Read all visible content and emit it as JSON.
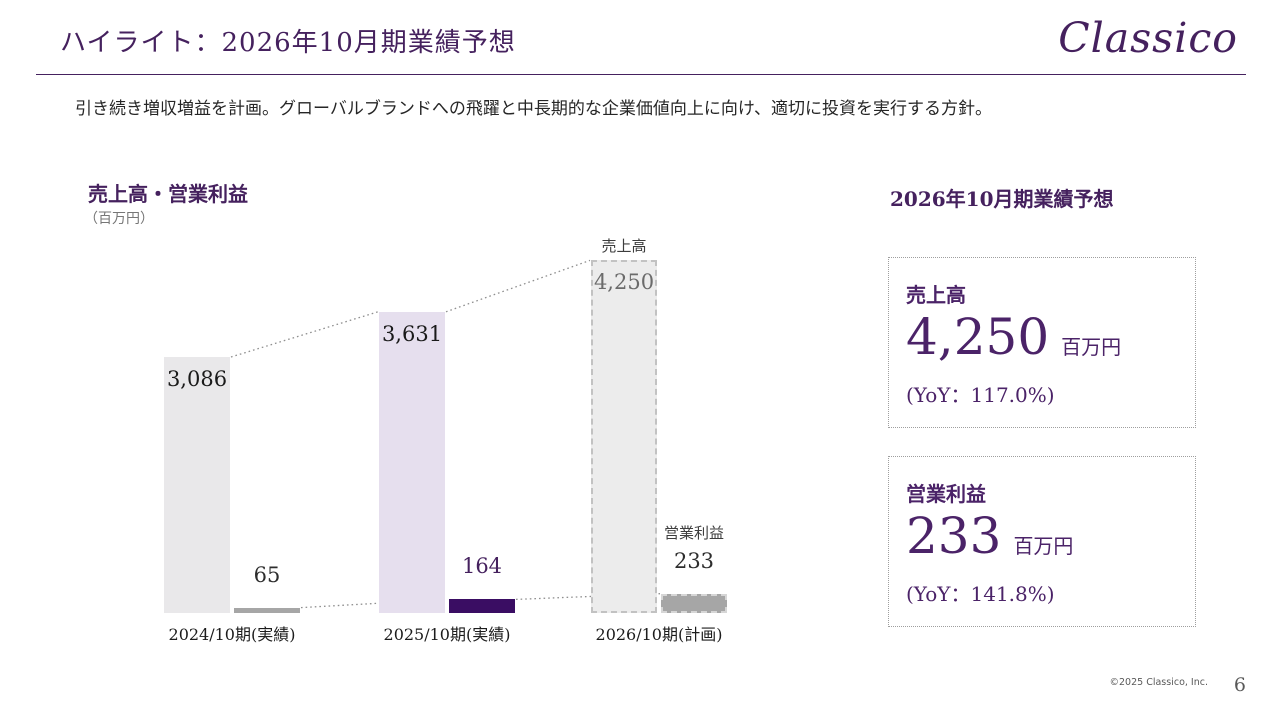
{
  "slide": {
    "title": "ハイライト：2026年10月期業績予想",
    "logo": "Classico",
    "subtitle": "引き続き増収増益を計画。グローバルブランドへの飛躍と中長期的な企業価値向上に向け、適切に投資を実行する方針。",
    "footer": {
      "copyright": "©2025 Classico, Inc.",
      "page_number": "6"
    }
  },
  "chart": {
    "title": "売上高・営業利益",
    "unit_label": "（百万円）",
    "annotations": {
      "sales": "売上高",
      "profit": "営業利益"
    }
  },
  "chart_data": {
    "type": "bar",
    "title": "売上高・営業利益",
    "unit": "百万円",
    "categories": [
      "2024/10期(実績)",
      "2025/10期(実績)",
      "2026/10期(計画)"
    ],
    "series": [
      {
        "name": "売上高",
        "values": [
          3086,
          3631,
          4250
        ],
        "labels": [
          "3,086",
          "3,631",
          "4,250"
        ]
      },
      {
        "name": "営業利益",
        "values": [
          65,
          164,
          233
        ],
        "labels": [
          "65",
          "164",
          "233"
        ]
      }
    ],
    "ylim": [
      0,
      4400
    ],
    "grid": false,
    "axis_lines": false,
    "legend": "none",
    "notes": "2026/10期(計画) bars drawn with dashed outlines; dotted connector lines link consecutive bar tops of each series"
  },
  "forecast_panel": {
    "heading": "2026年10月期業績予想",
    "cards": [
      {
        "label": "売上高",
        "value": "4,250",
        "unit": "百万円",
        "yoy": "(YoY：117.0%)"
      },
      {
        "label": "営業利益",
        "value": "233",
        "unit": "百万円",
        "yoy": "(YoY：141.8%)"
      }
    ]
  },
  "colors": {
    "brand_purple": "#45215e",
    "card_text_purple": "#4b2368",
    "bar_sales_2024": "#e9e8ea",
    "bar_sales_2025": "#e6dfee",
    "bar_sales_2026_fill": "#ececec",
    "bar_sales_2026_border": "#c2c2c2",
    "bar_profit_2024": "#a6a6a6",
    "bar_profit_2025": "#3a0d63",
    "bar_profit_2026_fill": "#a6a6a6",
    "bar_profit_2026_border": "#d6d6d6",
    "connector_gray": "#8f8f8f",
    "value_label_dark": "#1a1a1a",
    "value_label_planned_gray": "#6b6b6b"
  }
}
